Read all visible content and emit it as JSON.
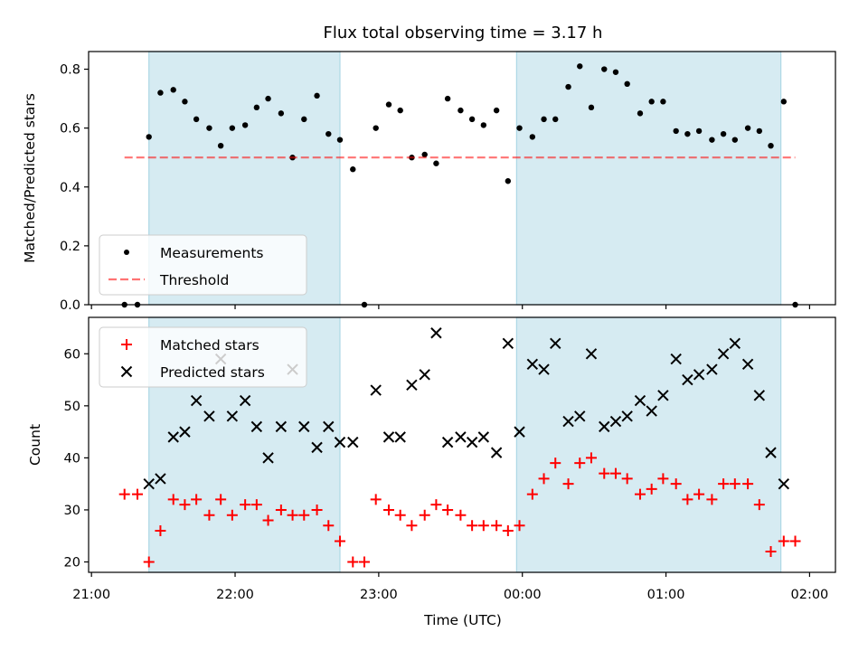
{
  "chart_data": {
    "title": "Flux total observing time = 3.17 h",
    "xlabel": "Time (UTC)",
    "x_tick_labels": [
      "21:00",
      "22:00",
      "23:00",
      "00:00",
      "01:00",
      "02:00"
    ],
    "x_tick_positions_h": [
      21,
      22,
      23,
      24,
      25,
      26
    ],
    "xlim_h": [
      20.98,
      26.18
    ],
    "shaded_intervals_h": [
      [
        21.4,
        22.73
      ],
      [
        23.96,
        25.8
      ]
    ],
    "colors": {
      "shade": "#add8e6",
      "threshold": "#ff0000",
      "matched": "#ff0000",
      "predicted": "#000000",
      "measurements": "#000000"
    },
    "panels": [
      {
        "type": "scatter",
        "ylabel": "Matched/Predicted stars",
        "ylim": [
          0,
          0.86
        ],
        "yticks": [
          0.0,
          0.2,
          0.4,
          0.6,
          0.8
        ],
        "legend_position": "lower-left",
        "series": [
          {
            "name": "Measurements",
            "marker": "dot",
            "points": [
              [
                21.23,
                0.0
              ],
              [
                21.32,
                0.0
              ],
              [
                21.4,
                0.57
              ],
              [
                21.48,
                0.72
              ],
              [
                21.57,
                0.73
              ],
              [
                21.65,
                0.69
              ],
              [
                21.73,
                0.63
              ],
              [
                21.82,
                0.6
              ],
              [
                21.9,
                0.54
              ],
              [
                21.98,
                0.6
              ],
              [
                22.07,
                0.61
              ],
              [
                22.15,
                0.67
              ],
              [
                22.23,
                0.7
              ],
              [
                22.32,
                0.65
              ],
              [
                22.4,
                0.5
              ],
              [
                22.48,
                0.63
              ],
              [
                22.57,
                0.71
              ],
              [
                22.65,
                0.58
              ],
              [
                22.73,
                0.56
              ],
              [
                22.82,
                0.46
              ],
              [
                22.9,
                0.0
              ],
              [
                22.98,
                0.6
              ],
              [
                23.07,
                0.68
              ],
              [
                23.15,
                0.66
              ],
              [
                23.23,
                0.5
              ],
              [
                23.32,
                0.51
              ],
              [
                23.4,
                0.48
              ],
              [
                23.48,
                0.7
              ],
              [
                23.57,
                0.66
              ],
              [
                23.65,
                0.63
              ],
              [
                23.73,
                0.61
              ],
              [
                23.82,
                0.66
              ],
              [
                23.9,
                0.42
              ],
              [
                23.98,
                0.6
              ],
              [
                24.07,
                0.57
              ],
              [
                24.15,
                0.63
              ],
              [
                24.23,
                0.63
              ],
              [
                24.32,
                0.74
              ],
              [
                24.4,
                0.81
              ],
              [
                24.48,
                0.67
              ],
              [
                24.57,
                0.8
              ],
              [
                24.65,
                0.79
              ],
              [
                24.73,
                0.75
              ],
              [
                24.82,
                0.65
              ],
              [
                24.9,
                0.69
              ],
              [
                24.98,
                0.69
              ],
              [
                25.07,
                0.59
              ],
              [
                25.15,
                0.58
              ],
              [
                25.23,
                0.59
              ],
              [
                25.32,
                0.56
              ],
              [
                25.4,
                0.58
              ],
              [
                25.48,
                0.56
              ],
              [
                25.57,
                0.6
              ],
              [
                25.65,
                0.59
              ],
              [
                25.73,
                0.54
              ],
              [
                25.82,
                0.69
              ],
              [
                25.9,
                0.0
              ]
            ]
          },
          {
            "name": "Threshold",
            "marker": "dashed-line",
            "points": [
              [
                21.23,
                0.5
              ],
              [
                25.9,
                0.5
              ]
            ]
          }
        ]
      },
      {
        "type": "scatter",
        "ylabel": "Count",
        "ylim": [
          18,
          67
        ],
        "yticks": [
          20,
          30,
          40,
          50,
          60
        ],
        "legend_position": "upper-left",
        "series": [
          {
            "name": "Matched stars",
            "marker": "plus",
            "points": [
              [
                21.23,
                33
              ],
              [
                21.32,
                33
              ],
              [
                21.4,
                20
              ],
              [
                21.48,
                26
              ],
              [
                21.57,
                32
              ],
              [
                21.65,
                31
              ],
              [
                21.73,
                32
              ],
              [
                21.82,
                29
              ],
              [
                21.9,
                32
              ],
              [
                21.98,
                29
              ],
              [
                22.07,
                31
              ],
              [
                22.15,
                31
              ],
              [
                22.23,
                28
              ],
              [
                22.32,
                30
              ],
              [
                22.4,
                29
              ],
              [
                22.48,
                29
              ],
              [
                22.57,
                30
              ],
              [
                22.65,
                27
              ],
              [
                22.73,
                24
              ],
              [
                22.82,
                20
              ],
              [
                22.9,
                20
              ],
              [
                22.98,
                32
              ],
              [
                23.07,
                30
              ],
              [
                23.15,
                29
              ],
              [
                23.23,
                27
              ],
              [
                23.32,
                29
              ],
              [
                23.4,
                31
              ],
              [
                23.48,
                30
              ],
              [
                23.57,
                29
              ],
              [
                23.65,
                27
              ],
              [
                23.73,
                27
              ],
              [
                23.82,
                27
              ],
              [
                23.9,
                26
              ],
              [
                23.98,
                27
              ],
              [
                24.07,
                33
              ],
              [
                24.15,
                36
              ],
              [
                24.23,
                39
              ],
              [
                24.32,
                35
              ],
              [
                24.4,
                39
              ],
              [
                24.48,
                40
              ],
              [
                24.57,
                37
              ],
              [
                24.65,
                37
              ],
              [
                24.73,
                36
              ],
              [
                24.82,
                33
              ],
              [
                24.9,
                34
              ],
              [
                24.98,
                36
              ],
              [
                25.07,
                35
              ],
              [
                25.15,
                32
              ],
              [
                25.23,
                33
              ],
              [
                25.32,
                32
              ],
              [
                25.4,
                35
              ],
              [
                25.48,
                35
              ],
              [
                25.57,
                35
              ],
              [
                25.65,
                31
              ],
              [
                25.73,
                22
              ],
              [
                25.82,
                24
              ],
              [
                25.9,
                24
              ]
            ]
          },
          {
            "name": "Predicted stars",
            "marker": "x",
            "points": [
              [
                21.4,
                35
              ],
              [
                21.48,
                36
              ],
              [
                21.57,
                44
              ],
              [
                21.65,
                45
              ],
              [
                21.73,
                51
              ],
              [
                21.82,
                48
              ],
              [
                21.9,
                59
              ],
              [
                21.98,
                48
              ],
              [
                22.07,
                51
              ],
              [
                22.15,
                46
              ],
              [
                22.23,
                40
              ],
              [
                22.32,
                46
              ],
              [
                22.4,
                57
              ],
              [
                22.48,
                46
              ],
              [
                22.57,
                42
              ],
              [
                22.65,
                46
              ],
              [
                22.73,
                43
              ],
              [
                22.82,
                43
              ],
              [
                22.98,
                53
              ],
              [
                23.07,
                44
              ],
              [
                23.15,
                44
              ],
              [
                23.23,
                54
              ],
              [
                23.32,
                56
              ],
              [
                23.4,
                64
              ],
              [
                23.48,
                43
              ],
              [
                23.57,
                44
              ],
              [
                23.65,
                43
              ],
              [
                23.73,
                44
              ],
              [
                23.82,
                41
              ],
              [
                23.9,
                62
              ],
              [
                23.98,
                45
              ],
              [
                24.07,
                58
              ],
              [
                24.15,
                57
              ],
              [
                24.23,
                62
              ],
              [
                24.32,
                47
              ],
              [
                24.4,
                48
              ],
              [
                24.48,
                60
              ],
              [
                24.57,
                46
              ],
              [
                24.65,
                47
              ],
              [
                24.73,
                48
              ],
              [
                24.82,
                51
              ],
              [
                24.9,
                49
              ],
              [
                24.98,
                52
              ],
              [
                25.07,
                59
              ],
              [
                25.15,
                55
              ],
              [
                25.23,
                56
              ],
              [
                25.32,
                57
              ],
              [
                25.4,
                60
              ],
              [
                25.48,
                62
              ],
              [
                25.57,
                58
              ],
              [
                25.65,
                52
              ],
              [
                25.73,
                41
              ],
              [
                25.82,
                35
              ]
            ]
          }
        ]
      }
    ]
  }
}
